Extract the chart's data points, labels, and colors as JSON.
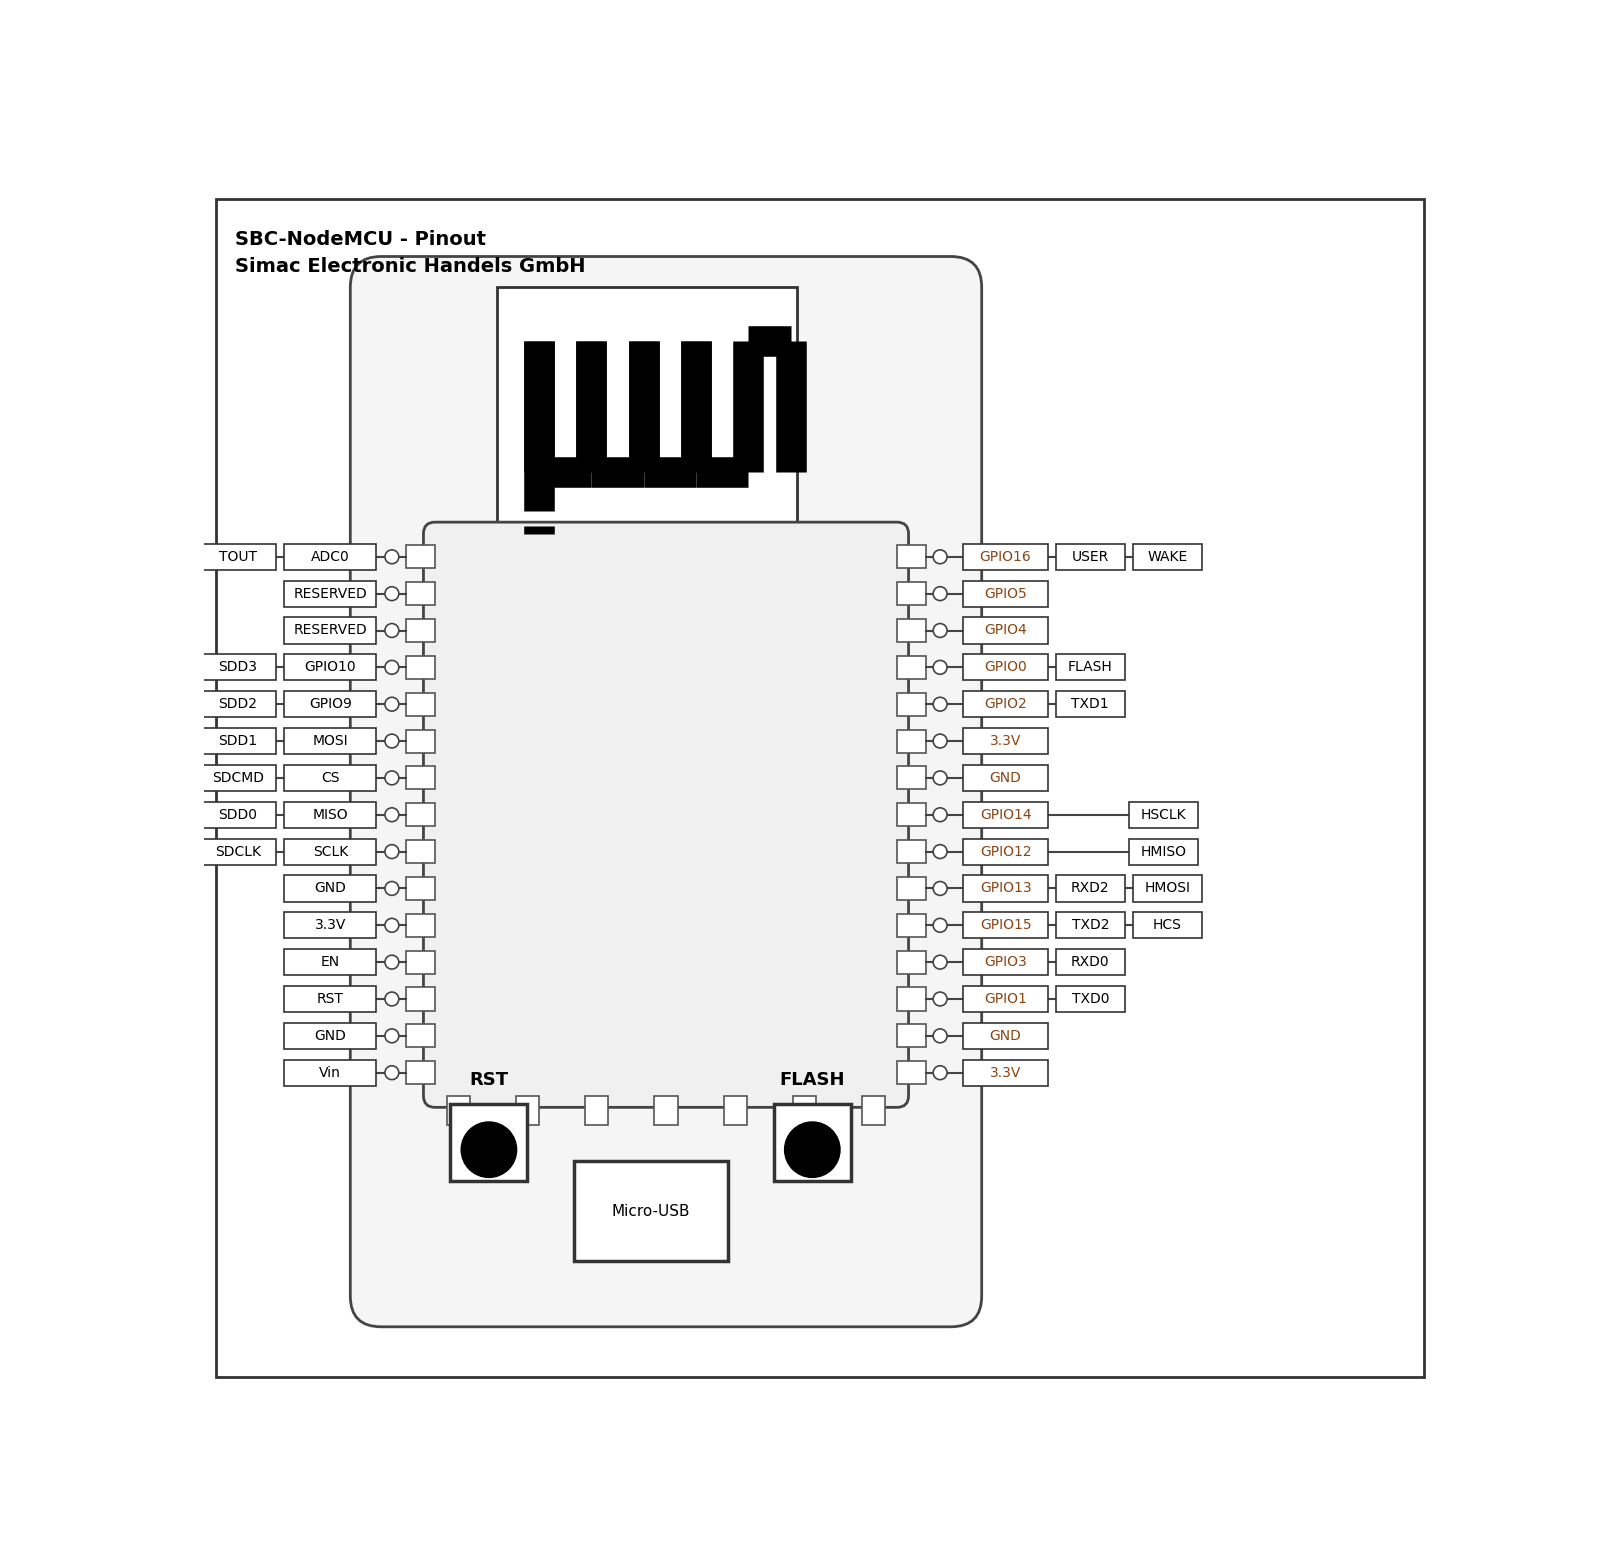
{
  "title_line1": "SBC-NodeMCU - Pinout",
  "title_line2": "Simac Electronic Handels GmbH",
  "bg_color": "#ffffff",
  "text_color": "#000000",
  "gpio_text_color": "#8B4513",
  "left_pins": [
    {
      "row": 0,
      "inner": "ADC0",
      "outer": "TOUT"
    },
    {
      "row": 1,
      "inner": "RESERVED",
      "outer": null
    },
    {
      "row": 2,
      "inner": "RESERVED",
      "outer": null
    },
    {
      "row": 3,
      "inner": "GPIO10",
      "outer": "SDD3"
    },
    {
      "row": 4,
      "inner": "GPIO9",
      "outer": "SDD2"
    },
    {
      "row": 5,
      "inner": "MOSI",
      "outer": "SDD1"
    },
    {
      "row": 6,
      "inner": "CS",
      "outer": "SDCMD"
    },
    {
      "row": 7,
      "inner": "MISO",
      "outer": "SDD0"
    },
    {
      "row": 8,
      "inner": "SCLK",
      "outer": "SDCLK"
    },
    {
      "row": 9,
      "inner": "GND",
      "outer": null
    },
    {
      "row": 10,
      "inner": "3.3V",
      "outer": null
    },
    {
      "row": 11,
      "inner": "EN",
      "outer": null
    },
    {
      "row": 12,
      "inner": "RST",
      "outer": null
    },
    {
      "row": 13,
      "inner": "GND",
      "outer": null
    },
    {
      "row": 14,
      "inner": "Vin",
      "outer": null
    }
  ],
  "right_pins": [
    {
      "row": 0,
      "inner": "GPIO16",
      "mid": "USER",
      "outer": "WAKE"
    },
    {
      "row": 1,
      "inner": "GPIO5",
      "mid": null,
      "outer": null
    },
    {
      "row": 2,
      "inner": "GPIO4",
      "mid": null,
      "outer": null
    },
    {
      "row": 3,
      "inner": "GPIO0",
      "mid": "FLASH",
      "outer": null
    },
    {
      "row": 4,
      "inner": "GPIO2",
      "mid": "TXD1",
      "outer": null
    },
    {
      "row": 5,
      "inner": "3.3V",
      "mid": null,
      "outer": null
    },
    {
      "row": 6,
      "inner": "GND",
      "mid": null,
      "outer": null
    },
    {
      "row": 7,
      "inner": "GPIO14",
      "mid": null,
      "outer": "HSCLK"
    },
    {
      "row": 8,
      "inner": "GPIO12",
      "mid": null,
      "outer": "HMISO"
    },
    {
      "row": 9,
      "inner": "GPIO13",
      "mid": "RXD2",
      "outer": "HMOSI"
    },
    {
      "row": 10,
      "inner": "GPIO15",
      "mid": "TXD2",
      "outer": "HCS"
    },
    {
      "row": 11,
      "inner": "GPIO3",
      "mid": "RXD0",
      "outer": null
    },
    {
      "row": 12,
      "inner": "GPIO1",
      "mid": "TXD0",
      "outer": null
    },
    {
      "row": 13,
      "inner": "GND",
      "mid": null,
      "outer": null
    },
    {
      "row": 14,
      "inner": "3.3V",
      "mid": null,
      "outer": null
    }
  ]
}
